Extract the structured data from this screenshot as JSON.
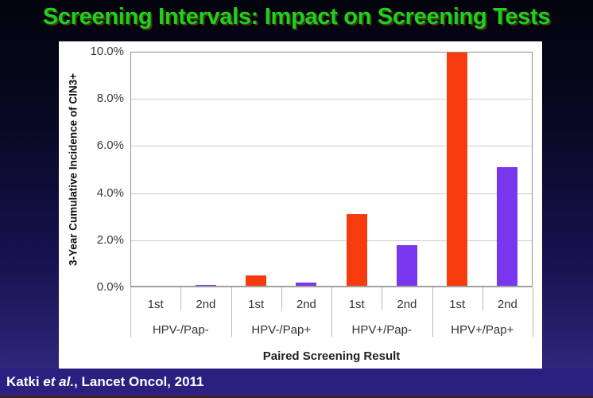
{
  "title": "Screening Intervals: Impact on Screening Tests",
  "citation": {
    "prefix": "Katki ",
    "italic": "et al.",
    "suffix": ", Lancet Oncol, 2011"
  },
  "colors": {
    "title_green": "#1fd11f",
    "background_top": "#03030d",
    "background_bottom": "#352b84",
    "citation_bar": "#2b2080",
    "bar_1st_red": "#f63c0e",
    "bar_2nd_purple": "#7a36ee",
    "gridline": "#cbcbcb",
    "axis_frame": "#8f8f8f",
    "axis_text": "#3a3a3a"
  },
  "chart_data": {
    "type": "bar",
    "title": "",
    "xlabel": "Paired Screening Result",
    "ylabel": "3-Year Cumulative Incidence of CIN3+",
    "categories": [
      "HPV-/Pap-",
      "HPV-/Pap+",
      "HPV+/Pap-",
      "HPV+/Pap+"
    ],
    "subcategories": [
      "1st",
      "2nd"
    ],
    "series": [
      {
        "name": "1st",
        "color": "#f63c0e",
        "values": [
          0.05,
          0.5,
          3.1,
          10.0
        ]
      },
      {
        "name": "2nd",
        "color": "#7a36ee",
        "values": [
          0.1,
          0.2,
          1.8,
          5.1
        ]
      }
    ],
    "ylim": [
      0,
      10
    ],
    "ytick_values": [
      0,
      2,
      4,
      6,
      8,
      10
    ],
    "yticks": [
      "0.0%",
      "2.0%",
      "4.0%",
      "6.0%",
      "8.0%",
      "10.0%"
    ],
    "grid": true,
    "legend": false
  }
}
